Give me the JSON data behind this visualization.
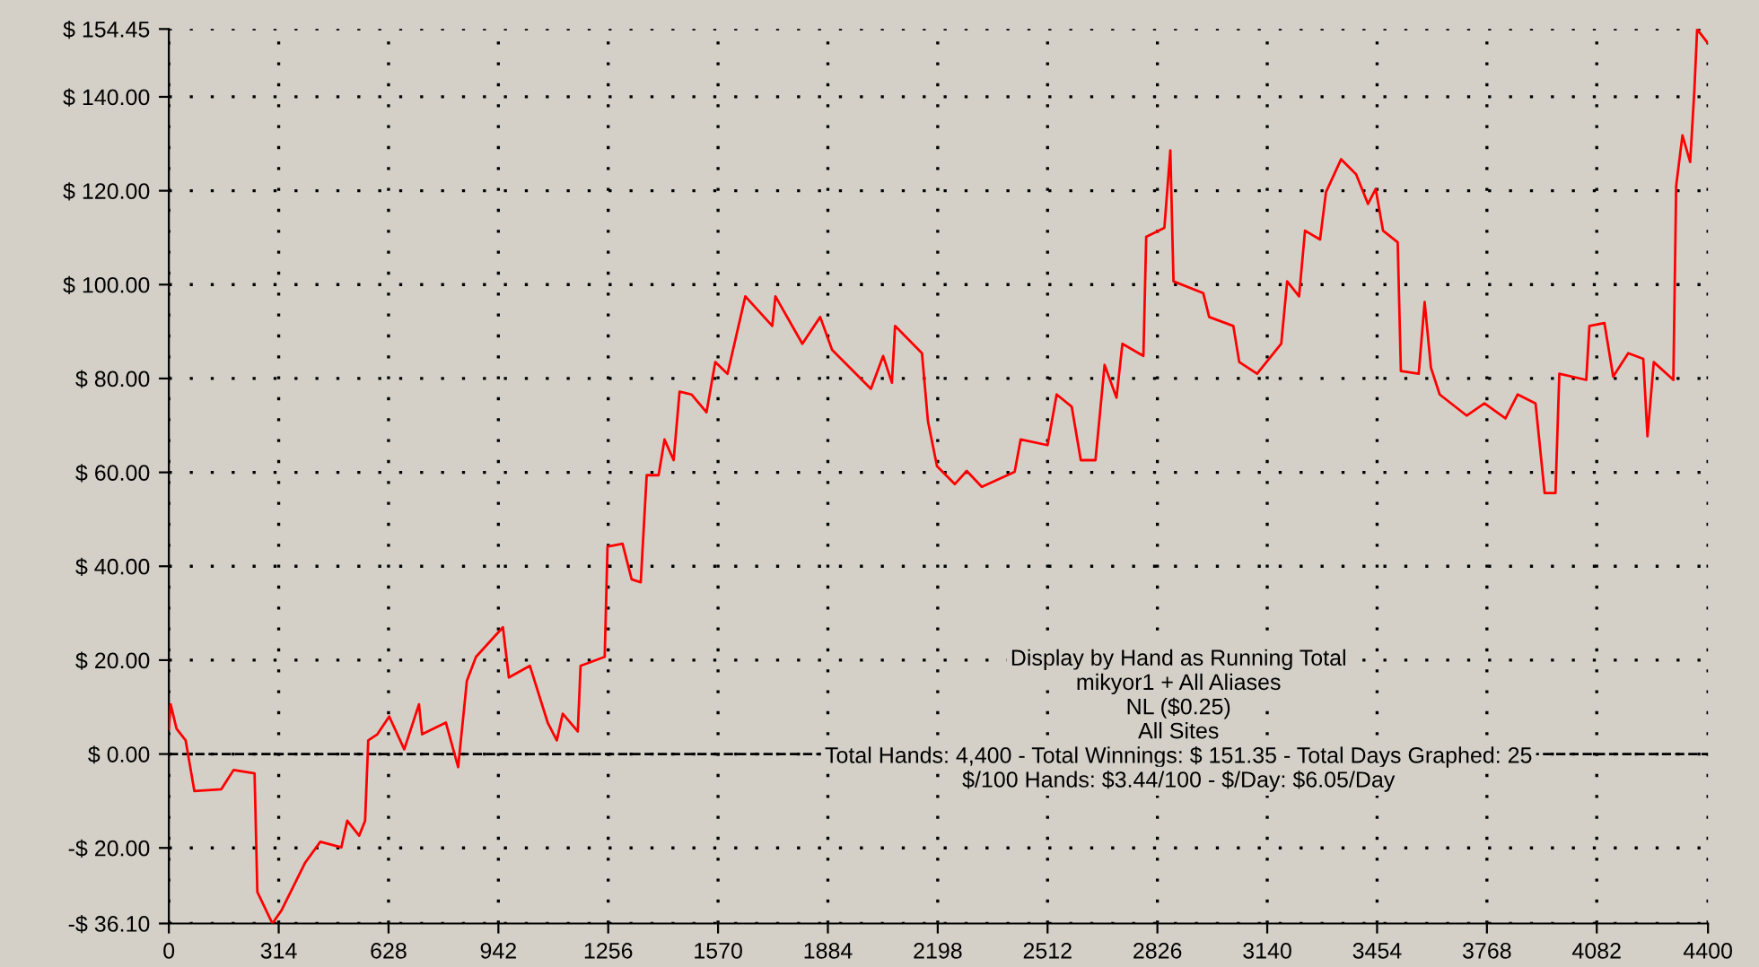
{
  "chart_data": {
    "type": "line",
    "x": [
      0,
      5,
      22,
      48,
      73,
      150,
      185,
      245,
      253,
      296,
      322,
      390,
      433,
      493,
      510,
      544,
      561,
      570,
      596,
      630,
      673,
      715,
      724,
      792,
      827,
      852,
      878,
      955,
      972,
      1032,
      1083,
      1109,
      1126,
      1169,
      1177,
      1246,
      1254,
      1297,
      1323,
      1349,
      1366,
      1400,
      1417,
      1443,
      1460,
      1494,
      1537,
      1562,
      1597,
      1648,
      1725,
      1734,
      1811,
      1862,
      1896,
      2007,
      2042,
      2067,
      2076,
      2153,
      2170,
      2196,
      2247,
      2281,
      2324,
      2418,
      2435,
      2512,
      2538,
      2581,
      2607,
      2649,
      2675,
      2709,
      2726,
      2786,
      2794,
      2846,
      2863,
      2872,
      2957,
      2974,
      3043,
      3060,
      3111,
      3180,
      3197,
      3231,
      3248,
      3291,
      3308,
      3351,
      3394,
      3428,
      3450,
      3471,
      3513,
      3522,
      3573,
      3590,
      3608,
      3633,
      3710,
      3761,
      3821,
      3856,
      3907,
      3933,
      3964,
      3975,
      4052,
      4061,
      4104,
      4129,
      4172,
      4215,
      4227,
      4245,
      4301,
      4309,
      4327,
      4349,
      4361,
      4369,
      4400
    ],
    "series": [
      {
        "color": "#ff0000",
        "values": [
          5.4,
          10.6,
          5.4,
          2.9,
          -7.9,
          -7.5,
          -3.4,
          -4.1,
          -29.4,
          -36.1,
          -33.3,
          -23.1,
          -18.7,
          -19.9,
          -14.2,
          -17.4,
          -14.2,
          2.9,
          4.2,
          8.0,
          1.0,
          10.6,
          4.2,
          6.7,
          -2.8,
          15.6,
          20.7,
          27.0,
          16.3,
          18.8,
          6.7,
          2.9,
          8.6,
          4.8,
          18.8,
          20.7,
          44.2,
          44.8,
          37.2,
          36.6,
          59.4,
          59.4,
          67.0,
          62.6,
          77.2,
          76.6,
          72.8,
          83.5,
          81.0,
          97.5,
          91.2,
          97.5,
          87.4,
          93.1,
          86.1,
          77.8,
          84.8,
          79.1,
          91.2,
          85.4,
          70.9,
          61.3,
          57.5,
          60.3,
          56.9,
          60.1,
          67.0,
          65.8,
          76.6,
          74.0,
          62.6,
          62.6,
          82.9,
          75.9,
          87.4,
          84.8,
          110.2,
          112.1,
          128.6,
          100.7,
          98.2,
          93.1,
          91.2,
          83.5,
          81.0,
          87.4,
          100.7,
          97.5,
          111.5,
          109.6,
          119.7,
          126.7,
          123.5,
          117.2,
          120.4,
          111.5,
          109.0,
          81.6,
          81.0,
          96.3,
          82.3,
          76.6,
          72.1,
          74.7,
          71.5,
          76.6,
          74.7,
          55.6,
          55.6,
          81.0,
          79.7,
          91.2,
          91.8,
          80.4,
          85.4,
          84.2,
          67.7,
          83.5,
          79.7,
          121.0,
          131.8,
          126.1,
          141.3,
          154.4,
          151.4
        ]
      }
    ],
    "xlim": [
      0,
      4400
    ],
    "xticks": [
      0,
      314,
      628,
      942,
      1256,
      1570,
      1884,
      2198,
      2512,
      2826,
      3140,
      3454,
      3768,
      4082,
      4400
    ],
    "ylim": [
      -36.1,
      154.45
    ],
    "yticks": [
      {
        "value": 154.45,
        "label": "$ 154.45"
      },
      {
        "value": 140,
        "label": "$ 140.00"
      },
      {
        "value": 120,
        "label": "$ 120.00"
      },
      {
        "value": 100,
        "label": "$ 100.00"
      },
      {
        "value": 80,
        "label": "$ 80.00"
      },
      {
        "value": 60,
        "label": "$ 60.00"
      },
      {
        "value": 40,
        "label": "$ 40.00"
      },
      {
        "value": 20,
        "label": "$ 20.00"
      },
      {
        "value": 0,
        "label": "$ 0.00"
      },
      {
        "value": -20,
        "label": "-$ 20.00"
      },
      {
        "value": -36.1,
        "label": "-$ 36.10"
      }
    ],
    "grid": true,
    "ref_lines": [
      {
        "axis": "y",
        "value": 0,
        "label": null,
        "color": "#000000",
        "line_style": "dashed"
      }
    ],
    "annotations": [
      "Display by Hand as Running Total",
      "mikyor1 + All Aliases",
      "NL ($0.25)",
      "All Sites",
      "Total Hands: 4,400 - Total Winnings: $ 151.35 - Total Days Graphed: 25",
      "$/100 Hands: $3.44/100 - $/Day: $6.05/Day"
    ]
  }
}
